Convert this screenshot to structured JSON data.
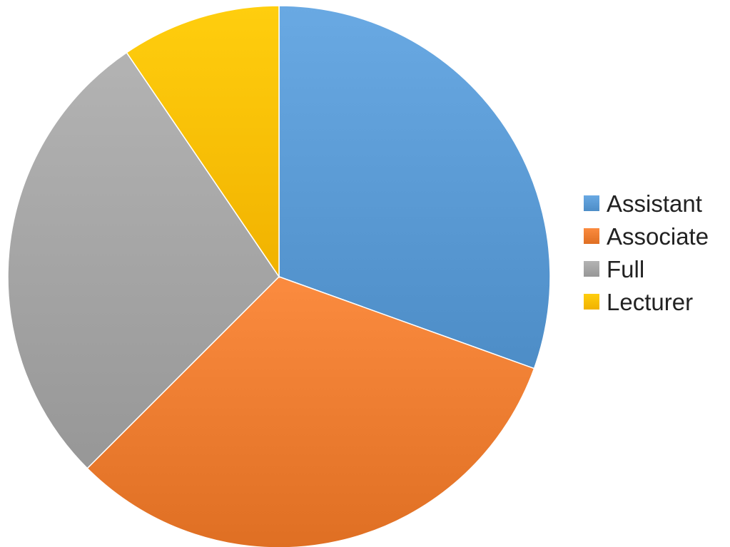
{
  "chart_data": {
    "type": "pie",
    "title": "",
    "slices": [
      {
        "label": "Assistant",
        "value": 30.5,
        "color": "#5b9bd5"
      },
      {
        "label": "Associate",
        "value": 32.0,
        "color": "#ed7d31"
      },
      {
        "label": "Full",
        "value": 28.0,
        "color": "#a5a5a5"
      },
      {
        "label": "Lecturer",
        "value": 9.5,
        "color": "#ffc000"
      }
    ],
    "legend_position": "right",
    "start_angle_deg": 0,
    "direction": "clockwise"
  }
}
